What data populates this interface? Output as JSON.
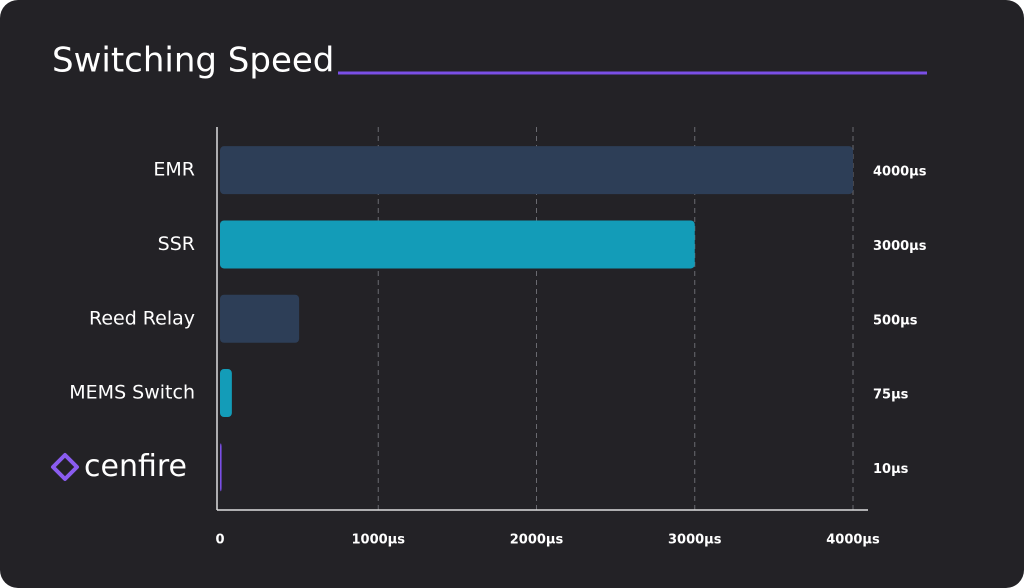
{
  "chart_data": {
    "type": "hbar",
    "title": "Switching Speed",
    "categories": [
      "EMR",
      "SSR",
      "Reed Relay",
      "MEMS Switch",
      "cenfire"
    ],
    "values": [
      4000,
      3000,
      500,
      75,
      10
    ],
    "value_labels": [
      "4000µs",
      "3000µs",
      "500µs",
      "75µs",
      "10µs"
    ],
    "colors": [
      "#2d3e57",
      "#139cb8",
      "#2d3e57",
      "#139cb8",
      "#7a4fe6"
    ],
    "xlim": [
      0,
      4000
    ],
    "xticks": [
      0,
      {
        "value": 1000,
        "label": "1000µs"
      },
      {
        "value": 2000,
        "label": "2000µs"
      },
      {
        "value": 3000,
        "label": "3000µs"
      },
      {
        "value": 4000,
        "label": "4000µs"
      }
    ],
    "grid": true
  }
}
